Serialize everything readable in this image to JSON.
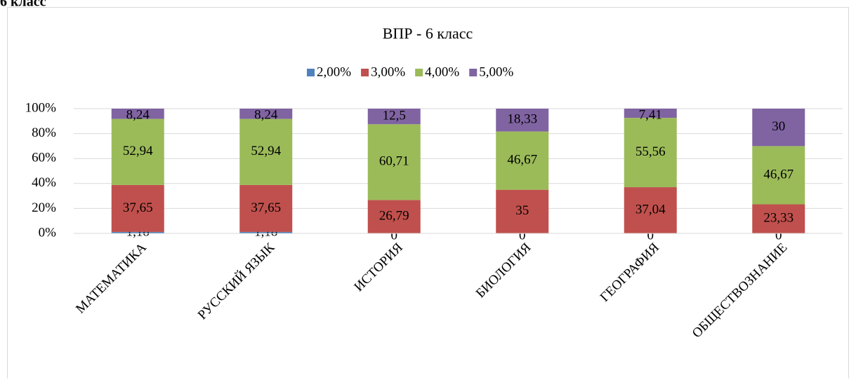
{
  "heading": "6 класс",
  "chart_data": {
    "type": "stacked_bar_100",
    "title": "ВПР - 6 класс",
    "categories": [
      "МАТЕМАТИКА",
      "РУССКИЙ ЯЗЫК",
      "ИСТОРИЯ",
      "БИОЛОГИЯ",
      "ГЕОГРАФИЯ",
      "ОБЩЕСТВОЗНАНИЕ"
    ],
    "series": [
      {
        "name": "2,00%",
        "color": "#4f81bd",
        "values": [
          1.18,
          1.18,
          0,
          0,
          0,
          0
        ],
        "value_labels": [
          "1,18",
          "1,18",
          "0",
          "0",
          "0",
          "0"
        ]
      },
      {
        "name": "3,00%",
        "color": "#c0504d",
        "values": [
          37.65,
          37.65,
          26.79,
          35,
          37.04,
          23.33
        ],
        "value_labels": [
          "37,65",
          "37,65",
          "26,79",
          "35",
          "37,04",
          "23,33"
        ]
      },
      {
        "name": "4,00%",
        "color": "#9bbb59",
        "values": [
          52.94,
          52.94,
          60.71,
          46.67,
          55.56,
          46.67
        ],
        "value_labels": [
          "52,94",
          "52,94",
          "60,71",
          "46,67",
          "55,56",
          "46,67"
        ]
      },
      {
        "name": "5,00%",
        "color": "#8064a2",
        "values": [
          8.24,
          8.24,
          12.5,
          18.33,
          7.41,
          30
        ],
        "value_labels": [
          "8,24",
          "8,24",
          "12,5",
          "18,33",
          "7,41",
          "30"
        ]
      }
    ],
    "ylim": [
      0,
      100
    ],
    "yticks": [
      {
        "value": 0,
        "label": "0%"
      },
      {
        "value": 20,
        "label": "20%"
      },
      {
        "value": 40,
        "label": "40%"
      },
      {
        "value": 60,
        "label": "60%"
      },
      {
        "value": 80,
        "label": "80%"
      },
      {
        "value": 100,
        "label": "100%"
      }
    ],
    "grid": true,
    "legend": "top"
  }
}
